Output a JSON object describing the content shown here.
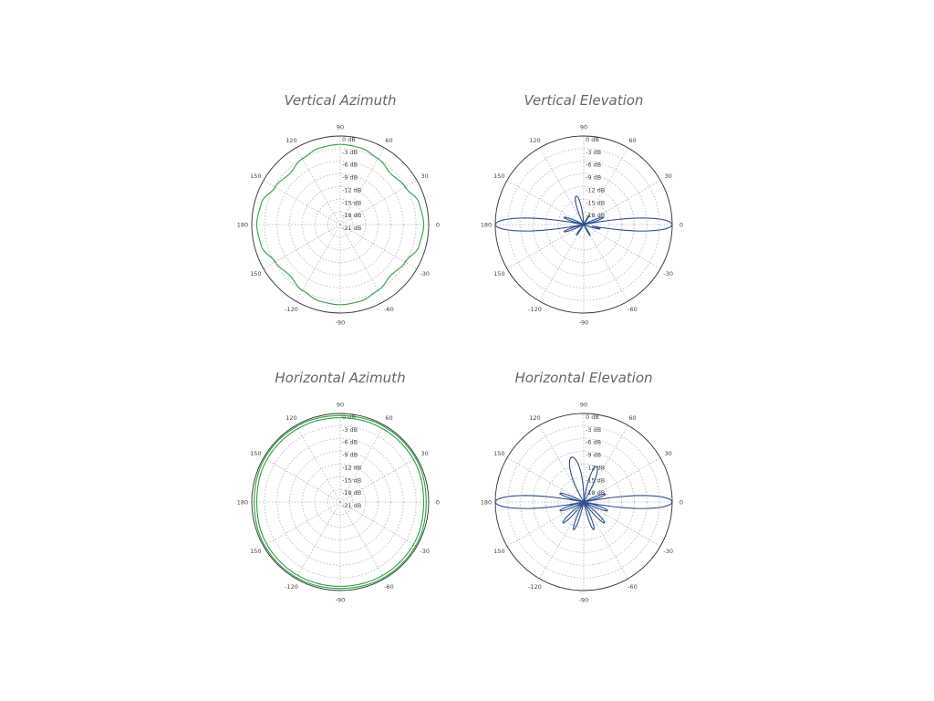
{
  "chart_data": [
    {
      "type": "polar",
      "title": "Vertical Azimuth",
      "angle_labels": [
        "0",
        "30",
        "60",
        "90",
        "120",
        "150",
        "180",
        "150",
        "-120",
        "-90",
        "-60",
        "-30"
      ],
      "radial_labels": [
        "0 dB",
        "-3 dB",
        "-6 dB",
        "-9 dB",
        "-12 dB",
        "-15 dB",
        "-18 dB",
        "-21 dB"
      ],
      "rlim": [
        -21,
        0
      ],
      "color": "#2ea043",
      "series": [
        {
          "theta_deg": [
            0,
            15,
            30,
            45,
            60,
            75,
            90,
            105,
            120,
            135,
            150,
            165,
            180,
            195,
            210,
            225,
            240,
            255,
            270,
            285,
            300,
            315,
            330,
            345
          ],
          "r_db": [
            -1.2,
            -1.6,
            -3.2,
            -4.0,
            -3.0,
            -2.2,
            -2.0,
            -2.2,
            -3.0,
            -4.0,
            -3.2,
            -1.6,
            -1.2,
            -1.6,
            -3.2,
            -4.0,
            -3.0,
            -2.2,
            -2.0,
            -2.2,
            -3.0,
            -4.0,
            -3.2,
            -1.6
          ]
        }
      ]
    },
    {
      "type": "polar",
      "title": "Vertical Elevation",
      "angle_labels": [
        "0",
        "30",
        "60",
        "90",
        "120",
        "150",
        "180",
        "150",
        "-120",
        "-90",
        "-60",
        "-30"
      ],
      "radial_labels": [
        "0 dB",
        "-3 dB",
        "-6 dB",
        "-9 dB",
        "-12 dB",
        "-15 dB",
        "-18 dB"
      ],
      "rlim": [
        -21,
        0
      ],
      "color": "#2b4f8c",
      "series": [
        {
          "lobes": [
            {
              "angle_deg": 0,
              "peak_db": 0,
              "width_deg": 5
            },
            {
              "angle_deg": 180,
              "peak_db": 0,
              "width_deg": 5
            },
            {
              "angle_deg": 105,
              "peak_db": -14,
              "width_deg": 9
            },
            {
              "angle_deg": 20,
              "peak_db": -16,
              "width_deg": 6
            },
            {
              "angle_deg": 160,
              "peak_db": -16,
              "width_deg": 6
            },
            {
              "angle_deg": 200,
              "peak_db": -16,
              "width_deg": 6
            },
            {
              "angle_deg": 345,
              "peak_db": -17,
              "width_deg": 6
            },
            {
              "angle_deg": 235,
              "peak_db": -18,
              "width_deg": 6
            },
            {
              "angle_deg": 300,
              "peak_db": -18,
              "width_deg": 6
            },
            {
              "angle_deg": 60,
              "peak_db": -18.5,
              "width_deg": 6
            }
          ],
          "floor_db": -21
        }
      ]
    },
    {
      "type": "polar",
      "title": "Horizontal Azimuth",
      "angle_labels": [
        "0",
        "30",
        "60",
        "90",
        "120",
        "150",
        "180",
        "150",
        "-120",
        "-90",
        "-60",
        "-30"
      ],
      "radial_labels": [
        "0 dB",
        "-3 dB",
        "-6 dB",
        "-9 dB",
        "-12 dB",
        "-15 dB",
        "-18 dB",
        "-21 dB"
      ],
      "rlim": [
        -21,
        0
      ],
      "color": "#2ea043",
      "series": [
        {
          "theta_deg": [
            0,
            30,
            60,
            90,
            120,
            150,
            180,
            210,
            240,
            270,
            300,
            330
          ],
          "r_db": [
            -0.6,
            -0.3,
            -0.3,
            -0.5,
            -0.3,
            -0.3,
            -0.6,
            -0.3,
            -0.3,
            -0.5,
            -0.3,
            -0.3
          ]
        },
        {
          "theta_deg": [
            0,
            30,
            60,
            90,
            120,
            150,
            180,
            210,
            240,
            270,
            300,
            330
          ],
          "r_db": [
            -1.2,
            -0.9,
            -0.9,
            -1.0,
            -0.9,
            -0.9,
            -1.2,
            -0.9,
            -0.9,
            -1.0,
            -0.9,
            -0.9
          ]
        }
      ]
    },
    {
      "type": "polar",
      "title": "Horizontal Elevation",
      "angle_labels": [
        "0",
        "30",
        "60",
        "90",
        "120",
        "150",
        "180",
        "150",
        "-120",
        "-90",
        "-60",
        "-30"
      ],
      "radial_labels": [
        "0 dB",
        "-3 dB",
        "-6 dB",
        "-9 dB",
        "-12 dB",
        "-15 dB",
        "-18 dB"
      ],
      "rlim": [
        -21,
        0
      ],
      "color": "#2b4f8c",
      "series": [
        {
          "lobes": [
            {
              "angle_deg": 0,
              "peak_db": 0,
              "width_deg": 5
            },
            {
              "angle_deg": 180,
              "peak_db": 0,
              "width_deg": 5
            },
            {
              "angle_deg": 105,
              "peak_db": -10,
              "width_deg": 10
            },
            {
              "angle_deg": 70,
              "peak_db": -12,
              "width_deg": 8
            },
            {
              "angle_deg": 200,
              "peak_db": -15,
              "width_deg": 6
            },
            {
              "angle_deg": 225,
              "peak_db": -14,
              "width_deg": 6
            },
            {
              "angle_deg": 250,
              "peak_db": -14,
              "width_deg": 6
            },
            {
              "angle_deg": 290,
              "peak_db": -14,
              "width_deg": 6
            },
            {
              "angle_deg": 315,
              "peak_db": -14,
              "width_deg": 6
            },
            {
              "angle_deg": 340,
              "peak_db": -15,
              "width_deg": 6
            },
            {
              "angle_deg": 160,
              "peak_db": -15,
              "width_deg": 6
            },
            {
              "angle_deg": 20,
              "peak_db": -15.5,
              "width_deg": 6
            }
          ],
          "floor_db": -21
        }
      ]
    }
  ]
}
